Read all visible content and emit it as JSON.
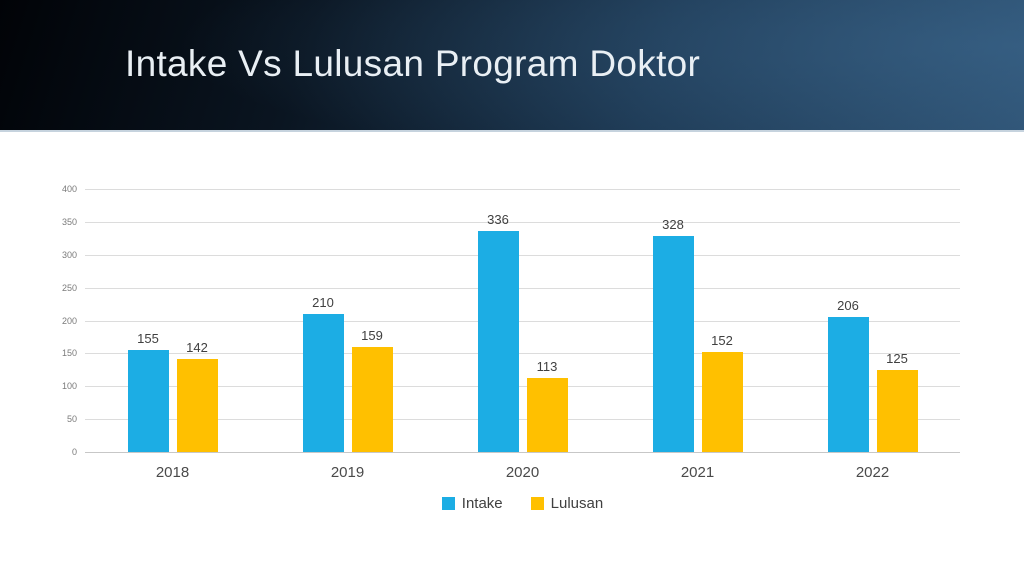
{
  "slide": {
    "title": "Intake Vs Lulusan Program Doktor"
  },
  "colors": {
    "intake_blue": "#1CADE4",
    "lulusan_gold": "#FFC000",
    "header_dark": "#04070C",
    "header_blue": "#2E5273",
    "title_text": "#E9EFF4",
    "gridline": "#DCDCDC",
    "axis_tick_text": "#7A7A7A",
    "label_text": "#404040"
  },
  "chart_data": {
    "type": "bar",
    "title": "Intake Vs Lulusan Program Doktor",
    "categories": [
      "2018",
      "2019",
      "2020",
      "2021",
      "2022"
    ],
    "series": [
      {
        "name": "Intake",
        "color": "#1CADE4",
        "values": [
          155,
          210,
          336,
          328,
          206
        ]
      },
      {
        "name": "Lulusan",
        "color": "#FFC000",
        "values": [
          142,
          159,
          113,
          152,
          125
        ]
      }
    ],
    "xlabel": "",
    "ylabel": "",
    "ylim": [
      0,
      400
    ],
    "y_ticks": [
      0,
      50,
      100,
      150,
      200,
      250,
      300,
      350,
      400
    ],
    "grid": true,
    "data_labels": true,
    "legend_position": "bottom"
  }
}
